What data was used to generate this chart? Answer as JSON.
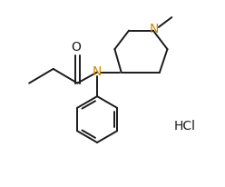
{
  "background_color": "#ffffff",
  "line_color": "#1a1a1a",
  "n_color": "#cc8800",
  "o_color": "#1a1a1a",
  "hcl_color": "#1a1a1a",
  "line_width": 1.4,
  "figsize": [
    2.48,
    2.07
  ],
  "dpi": 100,
  "xlim": [
    0,
    10
  ],
  "ylim": [
    0,
    8.5
  ]
}
